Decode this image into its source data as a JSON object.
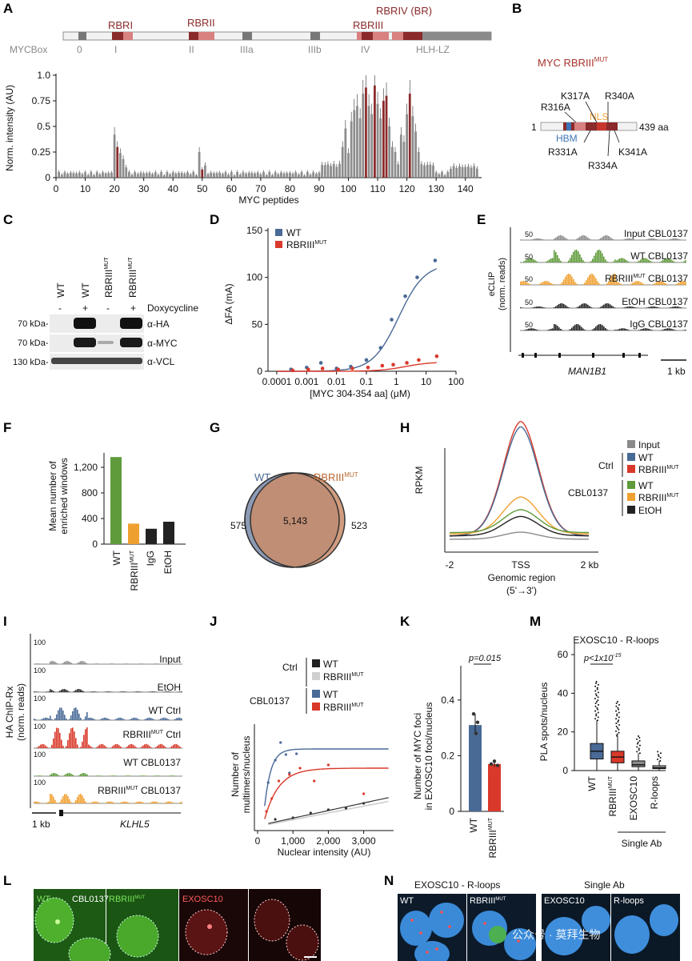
{
  "figure": {
    "panel_labels": [
      "A",
      "B",
      "C",
      "D",
      "E",
      "F",
      "G",
      "H",
      "I",
      "J",
      "K",
      "L",
      "M",
      "N"
    ],
    "colors": {
      "wt_blue": "#4a6a96",
      "mut_red": "#d9392a",
      "cbl_green": "#5f9b3a",
      "cbl_orange": "#f0a030",
      "etoh_black": "#222222",
      "input_gray": "#8a8a8a",
      "rbr_red": "#8b2a2a",
      "nls_orange": "#f2a33a",
      "hbm_blue": "#3d74b8"
    }
  },
  "panelA": {
    "rbr_labels": [
      "RBRI",
      "RBRII",
      "RBRIII",
      "RBRIV (BR)"
    ],
    "mycbox_label": "MYCBox",
    "box_labels": [
      "0",
      "I",
      "II",
      "IIIa",
      "IIIb",
      "IV",
      "HLH-LZ"
    ],
    "ylabel": "Norm. intensity (AU)",
    "xlabel": "MYC peptides",
    "yticks": [
      "0",
      "0.25",
      "0.5",
      "0.75",
      "1.0"
    ],
    "xticks": [
      "0",
      "10",
      "20",
      "30",
      "40",
      "50",
      "60",
      "70",
      "80",
      "90",
      "100",
      "110",
      "120",
      "130",
      "140"
    ]
  },
  "panelB": {
    "title": "MYC RBRIII",
    "title_sup": "MUT",
    "start": "1",
    "end": "439 aa",
    "nls": "NLS",
    "hbm": "HBM",
    "mutations": [
      "K317A",
      "R340A",
      "R316A",
      "R331A",
      "K341A",
      "R334A"
    ]
  },
  "panelC": {
    "lanes": [
      "WT",
      "WT",
      "RBRIII",
      "RBRIII"
    ],
    "lane_sup": "MUT",
    "dox": [
      "-",
      "+",
      "-",
      "+"
    ],
    "dox_label": "Doxycycline",
    "rows": [
      {
        "kda": "70 kDa-",
        "label": "α-HA"
      },
      {
        "kda": "70 kDa-",
        "label": "α-MYC"
      },
      {
        "kda": "130 kDa-",
        "label": "α-VCL"
      }
    ]
  },
  "panelD": {
    "legend": [
      "WT",
      "RBRIII"
    ],
    "legend_sup": "MUT",
    "ylabel": "ΔFA (mA)",
    "xlabel": "[MYC 304-354 aa] (μM)",
    "yticks": [
      "0",
      "50",
      "100",
      "150"
    ],
    "xticks": [
      "0.0001",
      "0.001",
      "0.01",
      "0.1",
      "1",
      "10",
      "100"
    ]
  },
  "panelE": {
    "ylabel": [
      "eCLIP",
      "(norm. reads)"
    ],
    "scale": "50",
    "tracks": [
      "Input CBL0137",
      "WT CBL0137",
      "RBRIII",
      "EtOH CBL0137",
      "IgG CBL0137"
    ],
    "track3_sup": "MUT",
    "track3_suffix": "CBL0137",
    "gene": "MAN1B1",
    "scalebar": "1 kb"
  },
  "panelF": {
    "ylabel": [
      "Mean number of",
      "enriched windows"
    ],
    "yticks": [
      "0",
      "400",
      "800",
      "1,200"
    ],
    "categories": [
      "WT",
      "RBRIII",
      "IgG",
      "EtOH"
    ],
    "cat_sup": "MUT"
  },
  "panelG": {
    "wt_label": "WT",
    "mut_label": "RBRIII",
    "mut_sup": "MUT",
    "left": "575",
    "overlap": "5,143",
    "right": "523"
  },
  "panelH": {
    "ylabel": "RPKM",
    "xticks": [
      "-2",
      "TSS",
      "2 kb"
    ],
    "xlabel": [
      "Genomic region",
      "(5'→3')"
    ],
    "legend": {
      "input": "Input",
      "ctrl_group": "Ctrl",
      "cbl_group": "CBL0137",
      "wt": "WT",
      "mut": "RBRIII",
      "mut_sup": "MUT",
      "etoh": "EtOH"
    }
  },
  "panelI": {
    "ylabel": [
      "HA ChIP-Rx",
      "(norm. reads)"
    ],
    "scale": "100",
    "tracks": [
      "Input",
      "EtOH",
      "WT Ctrl",
      "RBRIII",
      "WT CBL0137",
      "RBRIII"
    ],
    "track4_suffix": "Ctrl",
    "track6_suffix": "CBL0137",
    "sup": "MUT",
    "gene": "KLHL5",
    "scalebar": "1 kb"
  },
  "panelJ": {
    "legend": {
      "ctrl": "Ctrl",
      "cbl": "CBL0137",
      "wt": "WT",
      "mut": "RBRIII",
      "sup": "MUT"
    },
    "ylabel": [
      "Number of",
      "multimers/nucleus"
    ],
    "xlabel": "Nuclear intensity (AU)",
    "xticks": [
      "0",
      "1,000",
      "2,000",
      "3,000"
    ]
  },
  "panelK": {
    "ylabel": [
      "Number of MYC foci",
      "in EXOSC10 foci/nucleus"
    ],
    "pvalue": "p=0.015",
    "yticks": [
      "0",
      "0.2",
      "0.4"
    ],
    "categories": [
      "WT",
      "RBRIII"
    ],
    "cat_sup": "MUT"
  },
  "panelM": {
    "title": "EXOSC10 - R-loops",
    "pvalue": "p<1x10",
    "pvalue_exp": "-15",
    "ylabel": "PLA spots/nucleus",
    "yticks": [
      "0",
      "20",
      "40",
      "60"
    ],
    "categories": [
      "WT",
      "RBRIII",
      "EXOSC10",
      "R-loops"
    ],
    "cat_sup": "MUT",
    "bracket": "Single Ab"
  },
  "panelL": {
    "labels": [
      "WT",
      "CBL0137",
      "RBRIII",
      "EXOSC10"
    ],
    "sup": "MUT"
  },
  "panelN": {
    "title_left": "EXOSC10 - R-loops",
    "title_right": "Single Ab",
    "labels": [
      "WT",
      "RBRIII",
      "EXOSC10",
      "R-loops"
    ],
    "sup": "MUT",
    "watermark": "公众号 · 莫拜生物"
  }
}
